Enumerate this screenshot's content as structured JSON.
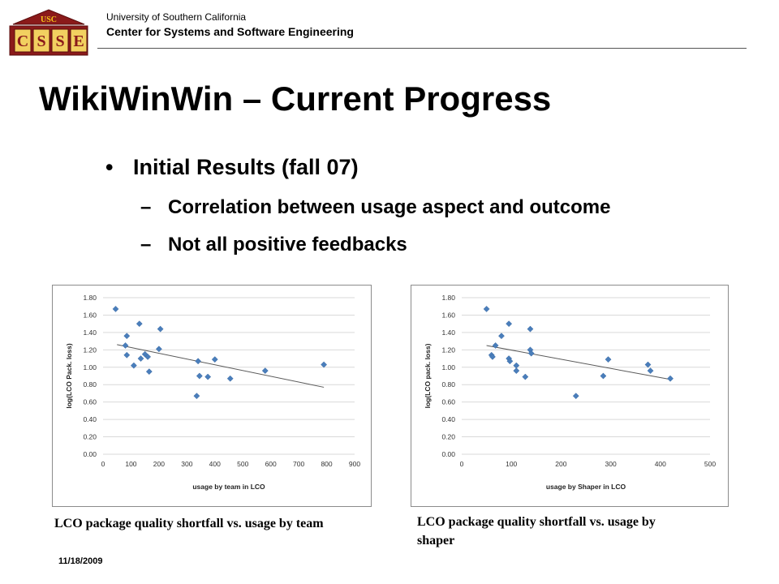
{
  "header": {
    "logo_top": "USC",
    "logo_letters": [
      "C",
      "S",
      "S",
      "E"
    ],
    "org_line1": "University of Southern California",
    "org_line2": "Center for Systems and Software Engineering"
  },
  "slide": {
    "title": "WikiWinWin – Current Progress",
    "bullet": "Initial Results (fall 07)",
    "subbullets": [
      "Correlation between usage aspect and outcome",
      "Not all positive feedbacks"
    ],
    "bullet_glyph": "•",
    "dash_glyph": "–"
  },
  "colors": {
    "marker": "#4a7ebb",
    "trend": "#595959",
    "grid": "#d9d9d9"
  },
  "chart_data": [
    {
      "type": "scatter",
      "xlabel": "usage by team in LCO",
      "ylabel": "log(LCO Pack. loss)",
      "xlim": [
        0,
        900
      ],
      "ylim": [
        0,
        1.8
      ],
      "xticks": [
        0,
        100,
        200,
        300,
        400,
        500,
        600,
        700,
        800,
        900
      ],
      "yticks": [
        "0.00",
        "0.20",
        "0.40",
        "0.60",
        "0.80",
        "1.00",
        "1.20",
        "1.40",
        "1.60",
        "1.80"
      ],
      "grid": true,
      "trendline": {
        "x": [
          50,
          790
        ],
        "y": [
          1.26,
          0.77
        ]
      },
      "points": [
        [
          45,
          1.67
        ],
        [
          80,
          1.25
        ],
        [
          85,
          1.36
        ],
        [
          85,
          1.14
        ],
        [
          110,
          1.02
        ],
        [
          130,
          1.5
        ],
        [
          135,
          1.1
        ],
        [
          150,
          1.15
        ],
        [
          160,
          1.12
        ],
        [
          165,
          0.95
        ],
        [
          200,
          1.21
        ],
        [
          205,
          1.44
        ],
        [
          335,
          0.67
        ],
        [
          340,
          1.07
        ],
        [
          345,
          0.9
        ],
        [
          375,
          0.89
        ],
        [
          400,
          1.09
        ],
        [
          455,
          0.87
        ],
        [
          580,
          0.96
        ],
        [
          790,
          1.03
        ]
      ],
      "caption": "LCO package quality shortfall vs. usage by team"
    },
    {
      "type": "scatter",
      "xlabel": "usage by Shaper in LCO",
      "ylabel": "log(LCO pack. loss)",
      "xlim": [
        0,
        500
      ],
      "ylim": [
        0,
        1.8
      ],
      "xticks": [
        0,
        100,
        200,
        300,
        400,
        500
      ],
      "yticks": [
        "0.00",
        "0.20",
        "0.40",
        "0.60",
        "0.80",
        "1.00",
        "1.20",
        "1.40",
        "1.60",
        "1.80"
      ],
      "grid": true,
      "trendline": {
        "x": [
          50,
          420
        ],
        "y": [
          1.25,
          0.86
        ]
      },
      "points": [
        [
          50,
          1.67
        ],
        [
          60,
          1.14
        ],
        [
          62,
          1.12
        ],
        [
          68,
          1.25
        ],
        [
          80,
          1.36
        ],
        [
          95,
          1.5
        ],
        [
          95,
          1.1
        ],
        [
          97,
          1.07
        ],
        [
          110,
          1.02
        ],
        [
          110,
          0.96
        ],
        [
          128,
          0.89
        ],
        [
          138,
          1.44
        ],
        [
          138,
          1.2
        ],
        [
          140,
          1.16
        ],
        [
          230,
          0.67
        ],
        [
          285,
          0.9
        ],
        [
          295,
          1.09
        ],
        [
          375,
          1.03
        ],
        [
          380,
          0.96
        ],
        [
          420,
          0.87
        ]
      ],
      "caption": "LCO package quality shortfall vs. usage by shaper"
    }
  ],
  "footer": {
    "date": "11/18/2009"
  }
}
